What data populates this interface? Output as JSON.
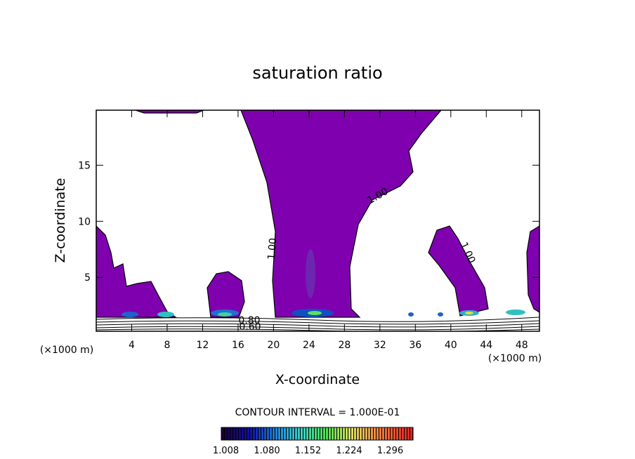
{
  "chart_data": {
    "type": "contour",
    "title": "saturation ratio",
    "x_label": "X-coordinate",
    "y_label": "Z-coordinate",
    "x_unit_left": "(×1000 m)",
    "x_unit_right": "(×1000 m)",
    "xlim": [
      0,
      50
    ],
    "xticks": [
      4,
      8,
      12,
      16,
      20,
      24,
      28,
      32,
      36,
      40,
      44,
      48
    ],
    "ylim": [
      0.2,
      19.9
    ],
    "yticks": [
      5,
      10,
      15
    ],
    "fill_color": "#7f00af",
    "contour_labels": [
      "1.00",
      "1.00",
      "1.00",
      "0.80",
      "0.60"
    ],
    "contour_interval": "CONTOUR INTERVAL = 1.000E-01",
    "clim": [
      1.0,
      1.336
    ],
    "cticks": [
      {
        "value": 1.008,
        "label": "1.008"
      },
      {
        "value": 1.08,
        "label": "1.080"
      },
      {
        "value": 1.152,
        "label": "1.152"
      },
      {
        "value": 1.224,
        "label": "1.224"
      },
      {
        "value": 1.296,
        "label": "1.296"
      }
    ]
  }
}
